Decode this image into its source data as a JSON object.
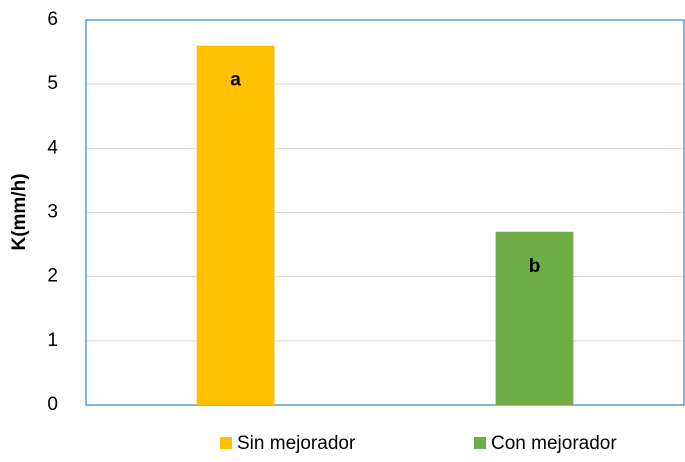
{
  "chart_data": {
    "type": "bar",
    "ylabel": "K(mm/h)",
    "categories": [
      null,
      null
    ],
    "series": [
      {
        "name": "Sin mejorador",
        "color": "#ffc000",
        "values": [
          5.6,
          null
        ],
        "annotation": "a"
      },
      {
        "name": "Con mejorador",
        "color": "#70ad47",
        "values": [
          null,
          2.7
        ],
        "annotation": "b"
      }
    ],
    "ylim": [
      0,
      6
    ],
    "yticks": [
      0,
      1,
      2,
      3,
      4,
      5,
      6
    ],
    "grid": true,
    "legend": "bottom"
  }
}
